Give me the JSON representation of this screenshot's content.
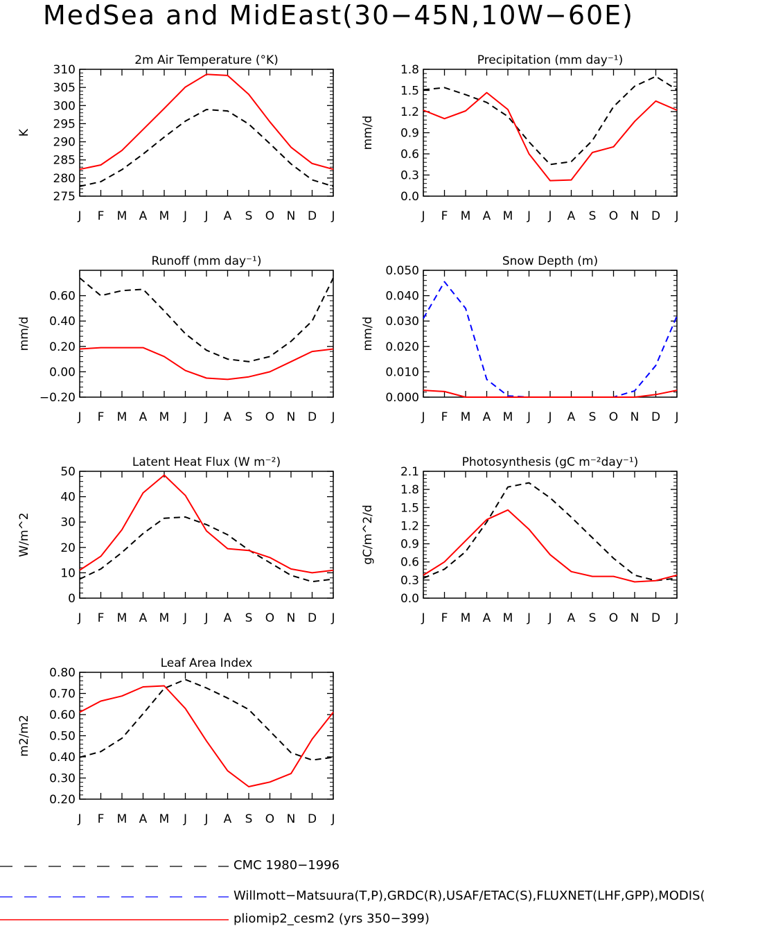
{
  "title": "MedSea and MidEast(30−45N,10W−60E)",
  "months": [
    "J",
    "F",
    "M",
    "A",
    "M",
    "J",
    "J",
    "A",
    "S",
    "O",
    "N",
    "D",
    "J"
  ],
  "colors": {
    "obs": "#000000",
    "obs2": "#0000ff",
    "model": "#ff0000"
  },
  "legend": [
    {
      "label": "CMC 1980−1996",
      "color": "#000000",
      "dash": "long-dash"
    },
    {
      "label": "Willmott−Matsuura(T,P),GRDC(R),USAF/ETAC(S),FLUXNET(LHF,GPP),MODIS(",
      "color": "#0000ff",
      "dash": "long-dash"
    },
    {
      "label": "pliomip2_cesm2 (yrs 350−399)",
      "color": "#ff0000",
      "dash": "solid"
    }
  ],
  "chart_data": [
    {
      "type": "line",
      "title": "2m Air Temperature (°K)",
      "ylabel": "K",
      "ylim": [
        275,
        310
      ],
      "yticks": [
        "310",
        "305",
        "300",
        "295",
        "290",
        "285",
        "280",
        "275"
      ],
      "ytick_values": [
        310,
        305,
        300,
        295,
        290,
        285,
        280,
        275
      ],
      "x": [
        "J",
        "F",
        "M",
        "A",
        "M",
        "J",
        "J",
        "A",
        "S",
        "O",
        "N",
        "D",
        "J"
      ],
      "series": [
        {
          "role": "obs",
          "color": "#000000",
          "dash": "dashed",
          "values": [
            277.7,
            279.0,
            282.3,
            286.6,
            291.3,
            295.7,
            298.9,
            298.5,
            294.9,
            289.5,
            283.9,
            279.5,
            277.7
          ]
        },
        {
          "role": "model",
          "color": "#ff0000",
          "dash": "solid",
          "values": [
            282.4,
            283.6,
            287.6,
            293.4,
            299.2,
            305.1,
            308.6,
            308.3,
            303.1,
            295.5,
            288.5,
            284.0,
            282.4
          ]
        }
      ]
    },
    {
      "type": "line",
      "title": "Precipitation (mm day⁻¹)",
      "ylabel": "mm/d",
      "ylim": [
        0,
        1.8
      ],
      "yticks": [
        "1.8",
        "1.5",
        "1.2",
        "0.9",
        "0.6",
        "0.3",
        "0.0"
      ],
      "ytick_values": [
        1.8,
        1.5,
        1.2,
        0.9,
        0.6,
        0.3,
        0.0
      ],
      "x": [
        "J",
        "F",
        "M",
        "A",
        "M",
        "J",
        "J",
        "A",
        "S",
        "O",
        "N",
        "D",
        "J"
      ],
      "series": [
        {
          "role": "obs",
          "color": "#000000",
          "dash": "dashed",
          "values": [
            1.51,
            1.54,
            1.44,
            1.33,
            1.13,
            0.77,
            0.45,
            0.49,
            0.79,
            1.27,
            1.56,
            1.7,
            1.51
          ]
        },
        {
          "role": "model",
          "color": "#ff0000",
          "dash": "solid",
          "values": [
            1.22,
            1.1,
            1.21,
            1.47,
            1.23,
            0.6,
            0.22,
            0.23,
            0.62,
            0.7,
            1.06,
            1.35,
            1.22
          ]
        }
      ]
    },
    {
      "type": "line",
      "title": "Runoff (mm day⁻¹)",
      "ylabel": "mm/d",
      "ylim": [
        -0.2,
        0.8
      ],
      "yticks": [
        "0.60",
        "0.40",
        "0.20",
        "0.00",
        "−0.20"
      ],
      "ytick_values": [
        0.6,
        0.4,
        0.2,
        0.0,
        -0.2
      ],
      "x": [
        "J",
        "F",
        "M",
        "A",
        "M",
        "J",
        "J",
        "A",
        "S",
        "O",
        "N",
        "D",
        "J"
      ],
      "series": [
        {
          "role": "obs",
          "color": "#000000",
          "dash": "dashed",
          "values": [
            0.74,
            0.6,
            0.64,
            0.65,
            0.48,
            0.3,
            0.17,
            0.1,
            0.08,
            0.12,
            0.24,
            0.4,
            0.74
          ]
        },
        {
          "role": "model",
          "color": "#ff0000",
          "dash": "solid",
          "values": [
            0.18,
            0.19,
            0.19,
            0.19,
            0.12,
            0.01,
            -0.05,
            -0.06,
            -0.04,
            0.0,
            0.08,
            0.16,
            0.18
          ]
        }
      ]
    },
    {
      "type": "line",
      "title": "Snow Depth (m)",
      "ylabel": "mm/d",
      "ylim": [
        0,
        0.05
      ],
      "yticks": [
        "0.050",
        "0.040",
        "0.030",
        "0.020",
        "0.010",
        "0.000"
      ],
      "ytick_values": [
        0.05,
        0.04,
        0.03,
        0.02,
        0.01,
        0.0
      ],
      "x": [
        "J",
        "F",
        "M",
        "A",
        "M",
        "J",
        "J",
        "A",
        "S",
        "O",
        "N",
        "D",
        "J"
      ],
      "series": [
        {
          "role": "obs2",
          "color": "#0000ff",
          "dash": "dashed",
          "values": [
            0.031,
            0.0455,
            0.035,
            0.007,
            0.0005,
            0.0,
            0.0,
            0.0,
            0.0,
            0.0,
            0.0025,
            0.0125,
            0.032
          ]
        },
        {
          "role": "model",
          "color": "#ff0000",
          "dash": "solid",
          "values": [
            0.0027,
            0.0022,
            0.0,
            0.0,
            0.0,
            0.0,
            0.0,
            0.0,
            0.0,
            0.0,
            0.0,
            0.001,
            0.0027
          ]
        }
      ]
    },
    {
      "type": "line",
      "title": "Latent Heat Flux (W m⁻²)",
      "ylabel": "W/m^2",
      "ylim": [
        0,
        50
      ],
      "yticks": [
        "50",
        "40",
        "30",
        "20",
        "10",
        "0"
      ],
      "ytick_values": [
        50,
        40,
        30,
        20,
        10,
        0
      ],
      "x": [
        "J",
        "F",
        "M",
        "A",
        "M",
        "J",
        "J",
        "A",
        "S",
        "O",
        "N",
        "D",
        "J"
      ],
      "series": [
        {
          "role": "obs",
          "color": "#000000",
          "dash": "dashed",
          "values": [
            7.5,
            11.5,
            18,
            25.5,
            31.5,
            32,
            29,
            25,
            19,
            14,
            9,
            6.5,
            7.5
          ]
        },
        {
          "role": "model",
          "color": "#ff0000",
          "dash": "solid",
          "values": [
            11,
            16.5,
            27,
            41.5,
            48.5,
            40.5,
            26.5,
            19.5,
            18.8,
            16,
            11.5,
            10,
            11
          ]
        }
      ]
    },
    {
      "type": "line",
      "title": "Photosynthesis (gC m⁻²day⁻¹)",
      "ylabel": "gC/m^2/d",
      "ylim": [
        0,
        2.1
      ],
      "yticks": [
        "2.1",
        "1.8",
        "1.5",
        "1.2",
        "0.9",
        "0.6",
        "0.3",
        "0.0"
      ],
      "ytick_values": [
        2.1,
        1.8,
        1.5,
        1.2,
        0.9,
        0.6,
        0.3,
        0.0
      ],
      "x": [
        "J",
        "F",
        "M",
        "A",
        "M",
        "J",
        "J",
        "A",
        "S",
        "O",
        "N",
        "D",
        "J"
      ],
      "series": [
        {
          "role": "obs",
          "color": "#000000",
          "dash": "dashed",
          "values": [
            0.33,
            0.48,
            0.77,
            1.26,
            1.84,
            1.91,
            1.66,
            1.34,
            1.0,
            0.66,
            0.38,
            0.29,
            0.33
          ]
        },
        {
          "role": "model",
          "color": "#ff0000",
          "dash": "solid",
          "values": [
            0.38,
            0.6,
            0.95,
            1.3,
            1.46,
            1.14,
            0.72,
            0.44,
            0.36,
            0.36,
            0.27,
            0.29,
            0.38
          ]
        }
      ]
    },
    {
      "type": "line",
      "title": "Leaf Area Index",
      "ylabel": "m2/m2",
      "ylim": [
        0.2,
        0.8
      ],
      "yticks": [
        "0.80",
        "0.70",
        "0.60",
        "0.50",
        "0.40",
        "0.30",
        "0.20"
      ],
      "ytick_values": [
        0.8,
        0.7,
        0.6,
        0.5,
        0.4,
        0.3,
        0.2
      ],
      "x": [
        "J",
        "F",
        "M",
        "A",
        "M",
        "J",
        "J",
        "A",
        "S",
        "O",
        "N",
        "D",
        "J"
      ],
      "series": [
        {
          "role": "obs",
          "color": "#000000",
          "dash": "dashed",
          "values": [
            0.398,
            0.425,
            0.488,
            0.604,
            0.724,
            0.766,
            0.726,
            0.678,
            0.624,
            0.522,
            0.42,
            0.385,
            0.398
          ]
        },
        {
          "role": "model",
          "color": "#ff0000",
          "dash": "solid",
          "values": [
            0.611,
            0.664,
            0.688,
            0.731,
            0.736,
            0.629,
            0.475,
            0.334,
            0.259,
            0.281,
            0.321,
            0.484,
            0.611
          ]
        }
      ]
    }
  ]
}
